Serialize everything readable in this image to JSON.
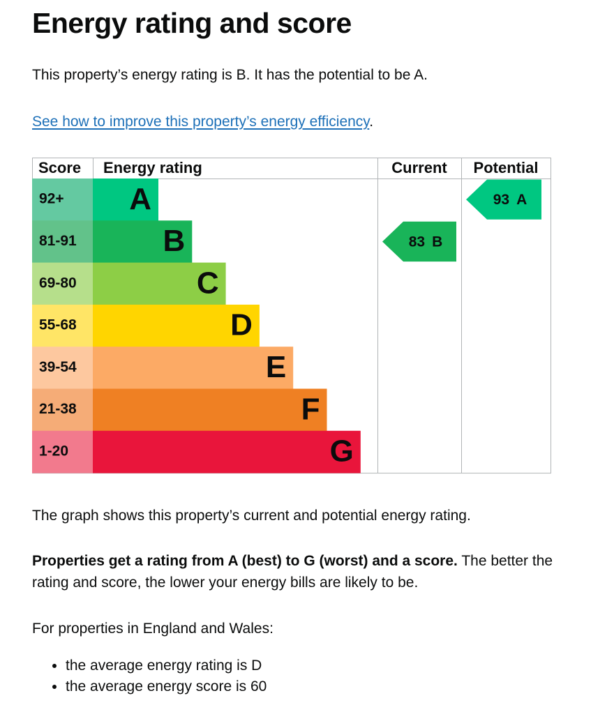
{
  "header": {
    "title": "Energy rating and score"
  },
  "intro": "This property’s energy rating is B. It has the potential to be A.",
  "link": {
    "text": "See how to improve this property’s energy efficiency",
    "after": "."
  },
  "graph": {
    "headers": [
      "Score",
      "Energy rating",
      "Current",
      "Potential"
    ],
    "bands": [
      {
        "score": "92+",
        "letter": "A"
      },
      {
        "score": "81-91",
        "letter": "B"
      },
      {
        "score": "69-80",
        "letter": "C"
      },
      {
        "score": "55-68",
        "letter": "D"
      },
      {
        "score": "39-54",
        "letter": "E"
      },
      {
        "score": "21-38",
        "letter": "F"
      },
      {
        "score": "1-20",
        "letter": "G"
      }
    ],
    "current": {
      "score": 83,
      "rating": "B"
    },
    "potential": {
      "score": 93,
      "rating": "A"
    }
  },
  "explanation": "The graph shows this property’s current and potential energy rating.",
  "rating_note": {
    "bold": "Properties get a rating from A (best) to G (worst) and a score.",
    "text": " The better the rating and score, the lower your energy bills are likely to be."
  },
  "average_intro": "For properties in England and Wales:",
  "average_list": [
    "the average energy rating is D",
    "the average energy score is 60"
  ]
}
